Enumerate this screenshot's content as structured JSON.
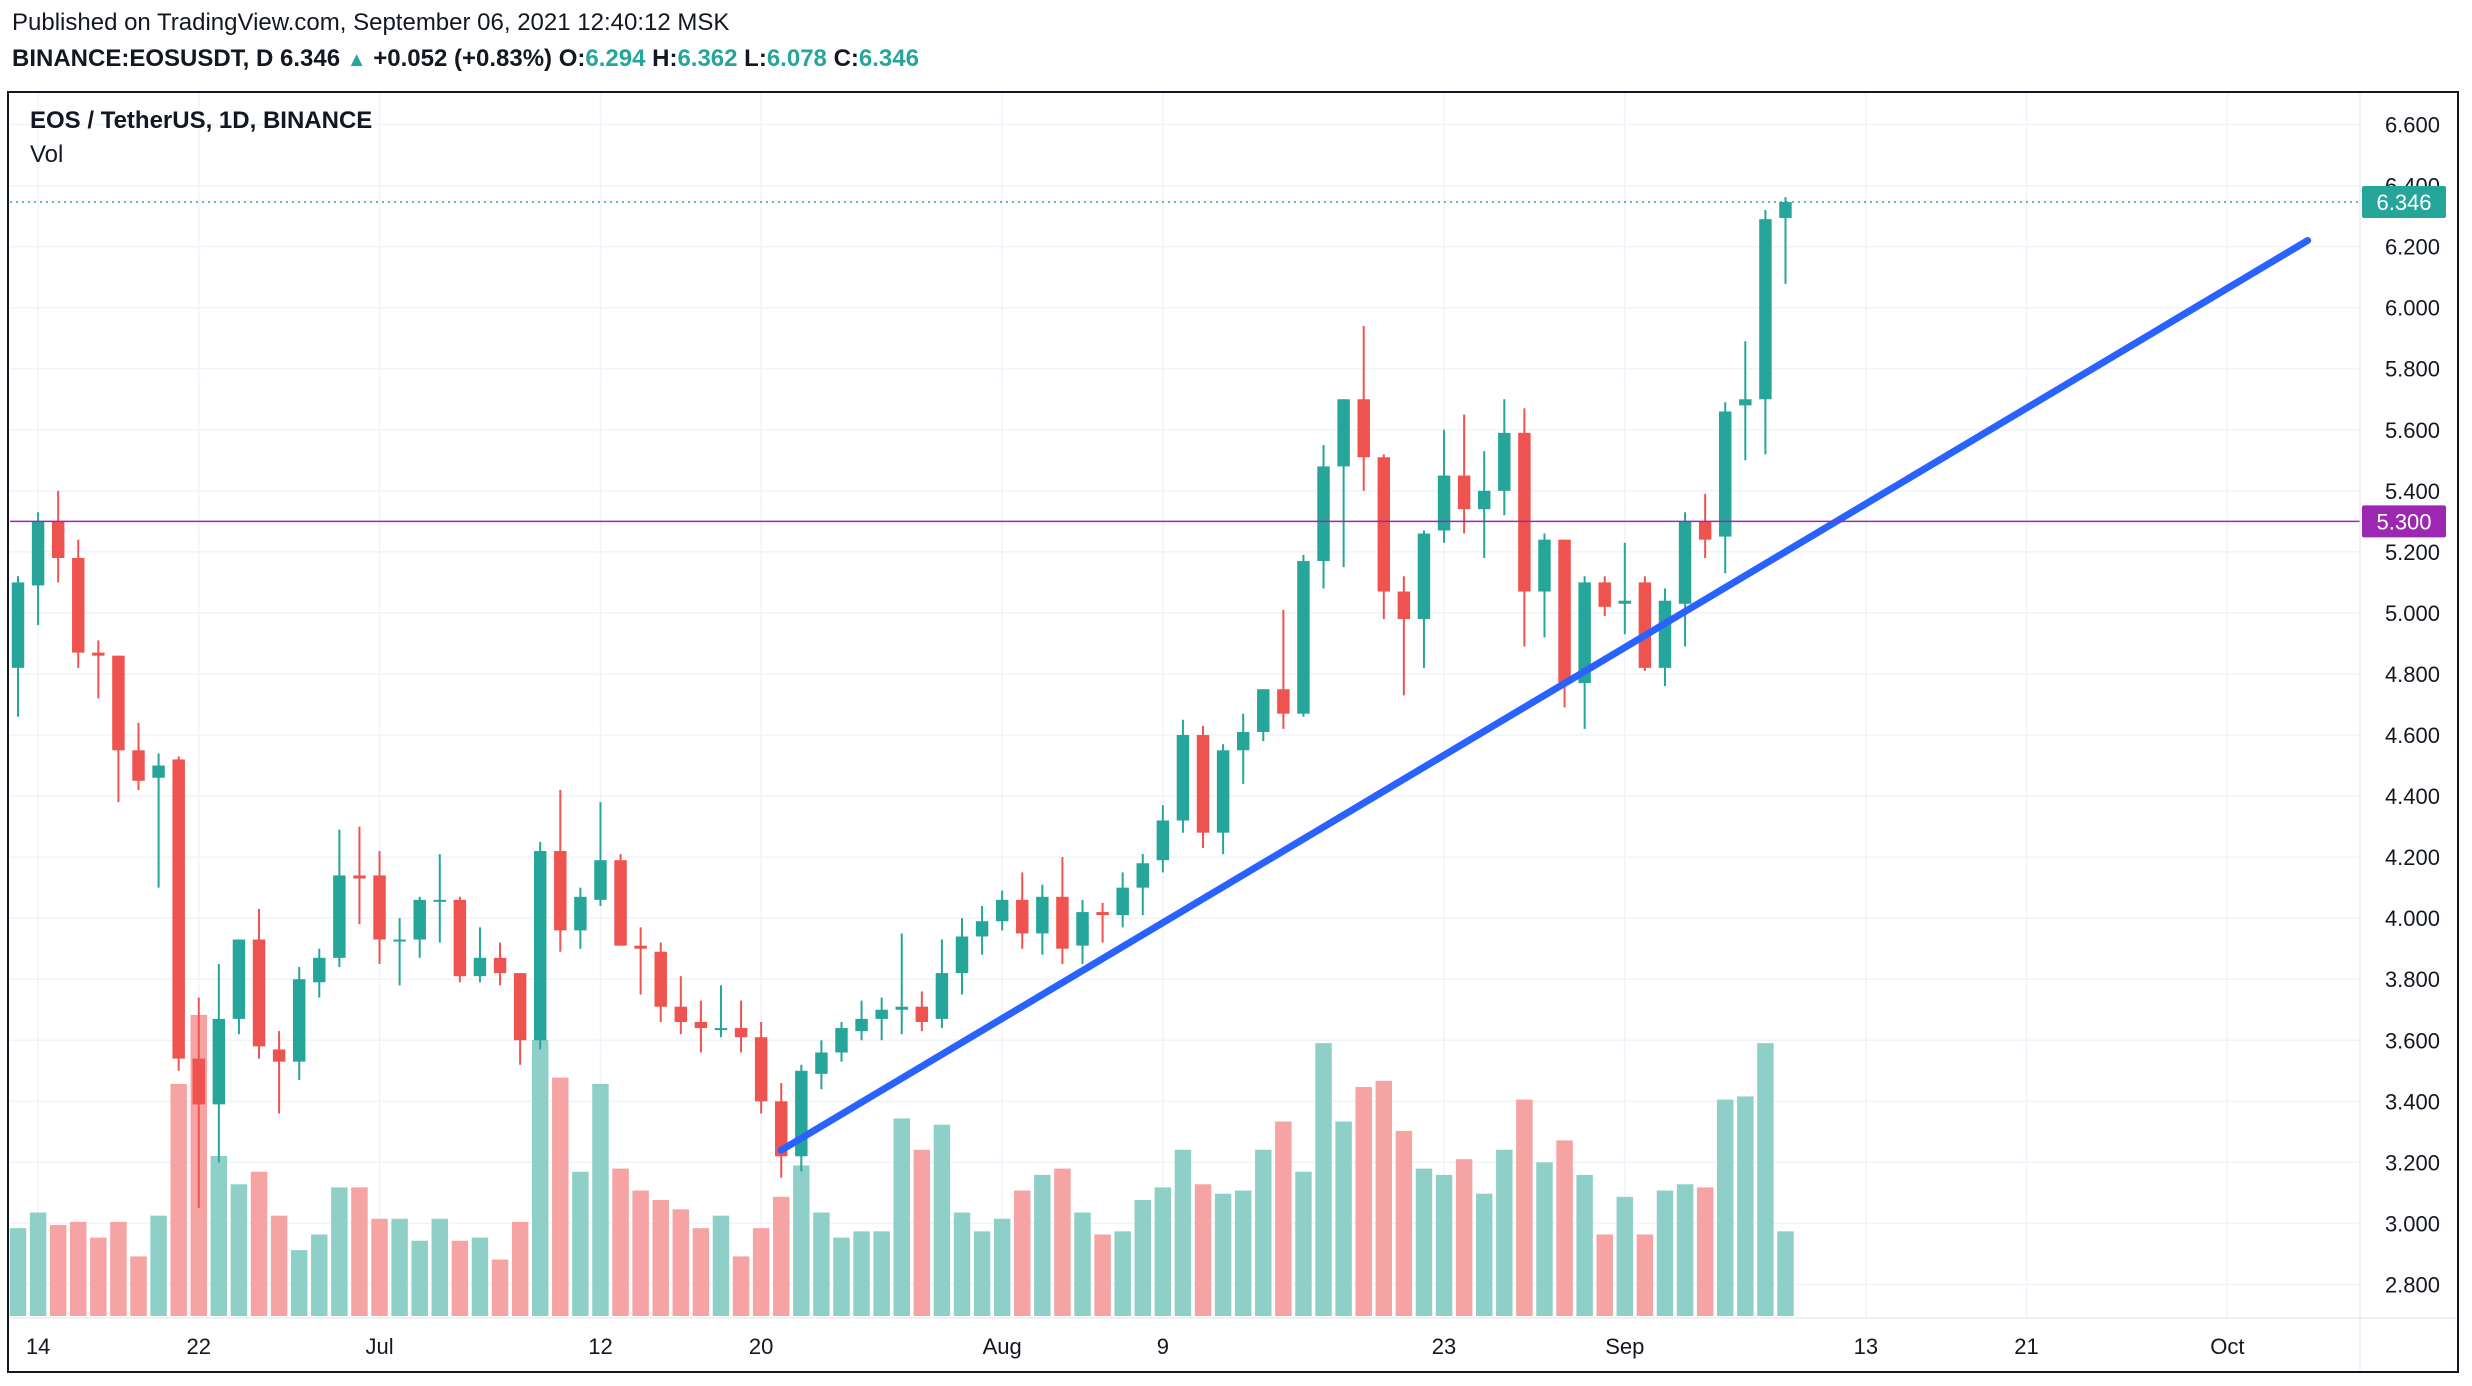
{
  "header": {
    "published": "Published on TradingView.com, September 06, 2021 12:40:12 MSK",
    "symbol": "BINANCE:EOSUSDT, D",
    "last": "6.346",
    "arrow": "▲",
    "change": "+0.052 (+0.83%)",
    "o_label": "O:",
    "o_value": "6.294",
    "h_label": "H:",
    "h_value": "6.362",
    "l_label": "L:",
    "l_value": "6.078",
    "c_label": "C:",
    "c_value": "6.346"
  },
  "legend": {
    "title": "EOS / TetherUS, 1D, BINANCE",
    "volume": "Vol"
  },
  "colors": {
    "up": "#26a69a",
    "down": "#ef5350",
    "up_volume": "#8ed0c8",
    "down_volume": "#f5a3a3",
    "support_line": "#2962ff",
    "horizontal_level": "#9c27b0",
    "last_price_line": "#26a69a",
    "grid": "#f0f3fa"
  },
  "chart_data": {
    "type": "candlestick",
    "y_axis": {
      "side": "right",
      "range": [
        2.7,
        6.7
      ],
      "ticks": [
        "2.800",
        "3.000",
        "3.200",
        "3.400",
        "3.600",
        "3.800",
        "4.000",
        "4.200",
        "4.400",
        "4.600",
        "4.800",
        "5.000",
        "5.200",
        "5.400",
        "5.600",
        "5.800",
        "6.000",
        "6.200",
        "6.400",
        "6.600"
      ]
    },
    "x_axis": {
      "start_date": "2021-06-13",
      "end_date": "2021-10-08",
      "ticks": [
        {
          "date": "2021-06-14",
          "label": "14"
        },
        {
          "date": "2021-06-22",
          "label": "22"
        },
        {
          "date": "2021-07-01",
          "label": "Jul"
        },
        {
          "date": "2021-07-12",
          "label": "12"
        },
        {
          "date": "2021-07-20",
          "label": "20"
        },
        {
          "date": "2021-08-01",
          "label": "Aug"
        },
        {
          "date": "2021-08-09",
          "label": "9"
        },
        {
          "date": "2021-08-23",
          "label": "23"
        },
        {
          "date": "2021-09-01",
          "label": "Sep"
        },
        {
          "date": "2021-09-13",
          "label": "13"
        },
        {
          "date": "2021-09-21",
          "label": "21"
        },
        {
          "date": "2021-10-01",
          "label": "Oct"
        }
      ]
    },
    "grid": true,
    "candles": [
      {
        "date": "2021-06-13",
        "o": 4.82,
        "h": 5.12,
        "l": 4.66,
        "c": 5.1,
        "v": 3.03
      },
      {
        "date": "2021-06-14",
        "o": 5.09,
        "h": 5.33,
        "l": 4.96,
        "c": 5.3,
        "v": 3.08
      },
      {
        "date": "2021-06-15",
        "o": 5.3,
        "h": 5.4,
        "l": 5.1,
        "c": 5.18,
        "v": 3.04
      },
      {
        "date": "2021-06-16",
        "o": 5.18,
        "h": 5.24,
        "l": 4.82,
        "c": 4.87,
        "v": 3.05
      },
      {
        "date": "2021-06-17",
        "o": 4.87,
        "h": 4.91,
        "l": 4.72,
        "c": 4.86,
        "v": 3.0
      },
      {
        "date": "2021-06-18",
        "o": 4.86,
        "h": 4.86,
        "l": 4.38,
        "c": 4.55,
        "v": 3.05
      },
      {
        "date": "2021-06-19",
        "o": 4.55,
        "h": 4.64,
        "l": 4.42,
        "c": 4.45,
        "v": 2.94
      },
      {
        "date": "2021-06-20",
        "o": 4.46,
        "h": 4.54,
        "l": 4.1,
        "c": 4.5,
        "v": 3.07
      },
      {
        "date": "2021-06-21",
        "o": 4.52,
        "h": 4.53,
        "l": 3.5,
        "c": 3.54,
        "v": 3.49
      },
      {
        "date": "2021-06-22",
        "o": 3.54,
        "h": 3.74,
        "l": 3.05,
        "c": 3.39,
        "v": 3.71
      },
      {
        "date": "2021-06-23",
        "o": 3.39,
        "h": 3.85,
        "l": 3.2,
        "c": 3.67,
        "v": 3.26
      },
      {
        "date": "2021-06-24",
        "o": 3.67,
        "h": 3.93,
        "l": 3.62,
        "c": 3.93,
        "v": 3.17
      },
      {
        "date": "2021-06-25",
        "o": 3.93,
        "h": 4.03,
        "l": 3.54,
        "c": 3.58,
        "v": 3.21
      },
      {
        "date": "2021-06-26",
        "o": 3.57,
        "h": 3.63,
        "l": 3.36,
        "c": 3.53,
        "v": 3.07
      },
      {
        "date": "2021-06-27",
        "o": 3.53,
        "h": 3.84,
        "l": 3.47,
        "c": 3.8,
        "v": 2.96
      },
      {
        "date": "2021-06-28",
        "o": 3.79,
        "h": 3.9,
        "l": 3.74,
        "c": 3.87,
        "v": 3.01
      },
      {
        "date": "2021-06-29",
        "o": 3.87,
        "h": 4.29,
        "l": 3.84,
        "c": 4.14,
        "v": 3.16
      },
      {
        "date": "2021-06-30",
        "o": 4.14,
        "h": 4.3,
        "l": 3.98,
        "c": 4.13,
        "v": 3.16
      },
      {
        "date": "2021-07-01",
        "o": 4.14,
        "h": 4.22,
        "l": 3.85,
        "c": 3.93,
        "v": 3.06
      },
      {
        "date": "2021-07-02",
        "o": 3.93,
        "h": 4.0,
        "l": 3.78,
        "c": 3.93,
        "v": 3.06
      },
      {
        "date": "2021-07-03",
        "o": 3.93,
        "h": 4.07,
        "l": 3.87,
        "c": 4.06,
        "v": 2.99
      },
      {
        "date": "2021-07-04",
        "o": 4.06,
        "h": 4.21,
        "l": 3.92,
        "c": 4.06,
        "v": 3.06
      },
      {
        "date": "2021-07-05",
        "o": 4.06,
        "h": 4.07,
        "l": 3.79,
        "c": 3.81,
        "v": 2.99
      },
      {
        "date": "2021-07-06",
        "o": 3.81,
        "h": 3.97,
        "l": 3.79,
        "c": 3.87,
        "v": 3.0
      },
      {
        "date": "2021-07-07",
        "o": 3.87,
        "h": 3.92,
        "l": 3.78,
        "c": 3.82,
        "v": 2.93
      },
      {
        "date": "2021-07-08",
        "o": 3.82,
        "h": 3.82,
        "l": 3.52,
        "c": 3.6,
        "v": 3.05
      },
      {
        "date": "2021-07-09",
        "o": 3.6,
        "h": 4.25,
        "l": 3.57,
        "c": 4.22,
        "v": 3.63
      },
      {
        "date": "2021-07-10",
        "o": 4.22,
        "h": 4.42,
        "l": 3.89,
        "c": 3.96,
        "v": 3.51
      },
      {
        "date": "2021-07-11",
        "o": 3.96,
        "h": 4.1,
        "l": 3.9,
        "c": 4.07,
        "v": 3.21
      },
      {
        "date": "2021-07-12",
        "o": 4.06,
        "h": 4.38,
        "l": 4.04,
        "c": 4.19,
        "v": 3.49
      },
      {
        "date": "2021-07-13",
        "o": 4.19,
        "h": 4.21,
        "l": 3.91,
        "c": 3.91,
        "v": 3.22
      },
      {
        "date": "2021-07-14",
        "o": 3.91,
        "h": 3.97,
        "l": 3.75,
        "c": 3.9,
        "v": 3.15
      },
      {
        "date": "2021-07-15",
        "o": 3.89,
        "h": 3.92,
        "l": 3.66,
        "c": 3.71,
        "v": 3.12
      },
      {
        "date": "2021-07-16",
        "o": 3.71,
        "h": 3.81,
        "l": 3.62,
        "c": 3.66,
        "v": 3.09
      },
      {
        "date": "2021-07-17",
        "o": 3.66,
        "h": 3.73,
        "l": 3.56,
        "c": 3.64,
        "v": 3.03
      },
      {
        "date": "2021-07-18",
        "o": 3.64,
        "h": 3.78,
        "l": 3.61,
        "c": 3.64,
        "v": 3.07
      },
      {
        "date": "2021-07-19",
        "o": 3.64,
        "h": 3.73,
        "l": 3.56,
        "c": 3.61,
        "v": 2.94
      },
      {
        "date": "2021-07-20",
        "o": 3.61,
        "h": 3.66,
        "l": 3.36,
        "c": 3.4,
        "v": 3.03
      },
      {
        "date": "2021-07-21",
        "o": 3.4,
        "h": 3.46,
        "l": 3.15,
        "c": 3.22,
        "v": 3.13
      },
      {
        "date": "2021-07-22",
        "o": 3.22,
        "h": 3.52,
        "l": 3.17,
        "c": 3.5,
        "v": 3.23
      },
      {
        "date": "2021-07-23",
        "o": 3.49,
        "h": 3.6,
        "l": 3.44,
        "c": 3.56,
        "v": 3.08
      },
      {
        "date": "2021-07-24",
        "o": 3.56,
        "h": 3.66,
        "l": 3.53,
        "c": 3.64,
        "v": 3.0
      },
      {
        "date": "2021-07-25",
        "o": 3.63,
        "h": 3.73,
        "l": 3.6,
        "c": 3.67,
        "v": 3.02
      },
      {
        "date": "2021-07-26",
        "o": 3.67,
        "h": 3.74,
        "l": 3.6,
        "c": 3.7,
        "v": 3.02
      },
      {
        "date": "2021-07-27",
        "o": 3.7,
        "h": 3.95,
        "l": 3.62,
        "c": 3.71,
        "v": 3.38
      },
      {
        "date": "2021-07-28",
        "o": 3.71,
        "h": 3.76,
        "l": 3.63,
        "c": 3.66,
        "v": 3.28
      },
      {
        "date": "2021-07-29",
        "o": 3.67,
        "h": 3.93,
        "l": 3.64,
        "c": 3.82,
        "v": 3.36
      },
      {
        "date": "2021-07-30",
        "o": 3.82,
        "h": 4.0,
        "l": 3.75,
        "c": 3.94,
        "v": 3.08
      },
      {
        "date": "2021-07-31",
        "o": 3.94,
        "h": 4.04,
        "l": 3.88,
        "c": 3.99,
        "v": 3.02
      },
      {
        "date": "2021-08-01",
        "o": 3.99,
        "h": 4.09,
        "l": 3.96,
        "c": 4.06,
        "v": 3.06
      },
      {
        "date": "2021-08-02",
        "o": 4.06,
        "h": 4.15,
        "l": 3.9,
        "c": 3.95,
        "v": 3.15
      },
      {
        "date": "2021-08-03",
        "o": 3.95,
        "h": 4.11,
        "l": 3.88,
        "c": 4.07,
        "v": 3.2
      },
      {
        "date": "2021-08-04",
        "o": 4.07,
        "h": 4.2,
        "l": 3.85,
        "c": 3.9,
        "v": 3.22
      },
      {
        "date": "2021-08-05",
        "o": 3.91,
        "h": 4.06,
        "l": 3.85,
        "c": 4.02,
        "v": 3.08
      },
      {
        "date": "2021-08-06",
        "o": 4.02,
        "h": 4.05,
        "l": 3.92,
        "c": 4.01,
        "v": 3.01
      },
      {
        "date": "2021-08-07",
        "o": 4.01,
        "h": 4.15,
        "l": 3.97,
        "c": 4.1,
        "v": 3.02
      },
      {
        "date": "2021-08-08",
        "o": 4.1,
        "h": 4.21,
        "l": 4.01,
        "c": 4.18,
        "v": 3.12
      },
      {
        "date": "2021-08-09",
        "o": 4.19,
        "h": 4.37,
        "l": 4.15,
        "c": 4.32,
        "v": 3.16
      },
      {
        "date": "2021-08-10",
        "o": 4.32,
        "h": 4.65,
        "l": 4.28,
        "c": 4.6,
        "v": 3.28
      },
      {
        "date": "2021-08-11",
        "o": 4.6,
        "h": 4.63,
        "l": 4.23,
        "c": 4.28,
        "v": 3.17
      },
      {
        "date": "2021-08-12",
        "o": 4.28,
        "h": 4.57,
        "l": 4.21,
        "c": 4.55,
        "v": 3.14
      },
      {
        "date": "2021-08-13",
        "o": 4.55,
        "h": 4.67,
        "l": 4.44,
        "c": 4.61,
        "v": 3.15
      },
      {
        "date": "2021-08-14",
        "o": 4.61,
        "h": 4.75,
        "l": 4.58,
        "c": 4.75,
        "v": 3.28
      },
      {
        "date": "2021-08-15",
        "o": 4.75,
        "h": 5.01,
        "l": 4.62,
        "c": 4.67,
        "v": 3.37
      },
      {
        "date": "2021-08-16",
        "o": 4.67,
        "h": 5.19,
        "l": 4.66,
        "c": 5.17,
        "v": 3.21
      },
      {
        "date": "2021-08-17",
        "o": 5.17,
        "h": 5.55,
        "l": 5.08,
        "c": 5.48,
        "v": 3.62
      },
      {
        "date": "2021-08-18",
        "o": 5.48,
        "h": 5.7,
        "l": 5.15,
        "c": 5.7,
        "v": 3.37
      },
      {
        "date": "2021-08-19",
        "o": 5.7,
        "h": 5.94,
        "l": 5.4,
        "c": 5.51,
        "v": 3.48
      },
      {
        "date": "2021-08-20",
        "o": 5.51,
        "h": 5.52,
        "l": 4.98,
        "c": 5.07,
        "v": 3.5
      },
      {
        "date": "2021-08-21",
        "o": 5.07,
        "h": 5.12,
        "l": 4.73,
        "c": 4.98,
        "v": 3.34
      },
      {
        "date": "2021-08-22",
        "o": 4.98,
        "h": 5.27,
        "l": 4.82,
        "c": 5.26,
        "v": 3.22
      },
      {
        "date": "2021-08-23",
        "o": 5.27,
        "h": 5.6,
        "l": 5.23,
        "c": 5.45,
        "v": 3.2
      },
      {
        "date": "2021-08-24",
        "o": 5.45,
        "h": 5.65,
        "l": 5.26,
        "c": 5.34,
        "v": 3.25
      },
      {
        "date": "2021-08-25",
        "o": 5.34,
        "h": 5.53,
        "l": 5.18,
        "c": 5.4,
        "v": 3.14
      },
      {
        "date": "2021-08-26",
        "o": 5.4,
        "h": 5.7,
        "l": 5.32,
        "c": 5.59,
        "v": 3.28
      },
      {
        "date": "2021-08-27",
        "o": 5.59,
        "h": 5.67,
        "l": 4.89,
        "c": 5.07,
        "v": 3.44
      },
      {
        "date": "2021-08-28",
        "o": 5.07,
        "h": 5.26,
        "l": 4.92,
        "c": 5.24,
        "v": 3.24
      },
      {
        "date": "2021-08-29",
        "o": 5.24,
        "h": 5.24,
        "l": 4.69,
        "c": 4.77,
        "v": 3.31
      },
      {
        "date": "2021-08-30",
        "o": 4.77,
        "h": 5.12,
        "l": 4.62,
        "c": 5.1,
        "v": 3.2
      },
      {
        "date": "2021-08-31",
        "o": 5.1,
        "h": 5.12,
        "l": 4.99,
        "c": 5.02,
        "v": 3.01
      },
      {
        "date": "2021-09-01",
        "o": 5.03,
        "h": 5.23,
        "l": 4.93,
        "c": 5.04,
        "v": 3.13
      },
      {
        "date": "2021-09-02",
        "o": 5.1,
        "h": 5.12,
        "l": 4.81,
        "c": 4.82,
        "v": 3.01
      },
      {
        "date": "2021-09-03",
        "o": 4.82,
        "h": 5.08,
        "l": 4.76,
        "c": 5.04,
        "v": 3.15
      },
      {
        "date": "2021-09-04",
        "o": 5.03,
        "h": 5.33,
        "l": 4.89,
        "c": 5.3,
        "v": 3.17
      },
      {
        "date": "2021-09-05",
        "o": 5.3,
        "h": 5.39,
        "l": 5.18,
        "c": 5.24,
        "v": 3.16
      },
      {
        "date": "2021-09-06",
        "o": 5.25,
        "h": 5.69,
        "l": 5.13,
        "c": 5.66,
        "v": 3.44
      },
      {
        "date": "2021-09-07",
        "o": 5.68,
        "h": 5.89,
        "l": 5.5,
        "c": 5.7,
        "v": 3.45
      },
      {
        "date": "2021-09-08",
        "o": 5.7,
        "h": 6.32,
        "l": 5.52,
        "c": 6.29,
        "v": 3.62
      },
      {
        "date": "2021-09-09",
        "o": 6.294,
        "h": 6.362,
        "l": 6.078,
        "c": 6.346,
        "v": 3.02
      }
    ],
    "annotations": [
      {
        "type": "trend_line",
        "from": {
          "date": "2021-07-21",
          "price": 3.24
        },
        "to": {
          "date": "2021-10-05",
          "price": 6.22
        }
      },
      {
        "type": "horizontal_line",
        "price": 5.3,
        "label": "5.300"
      },
      {
        "type": "last_price",
        "price": 6.346,
        "label": "6.346"
      }
    ]
  }
}
